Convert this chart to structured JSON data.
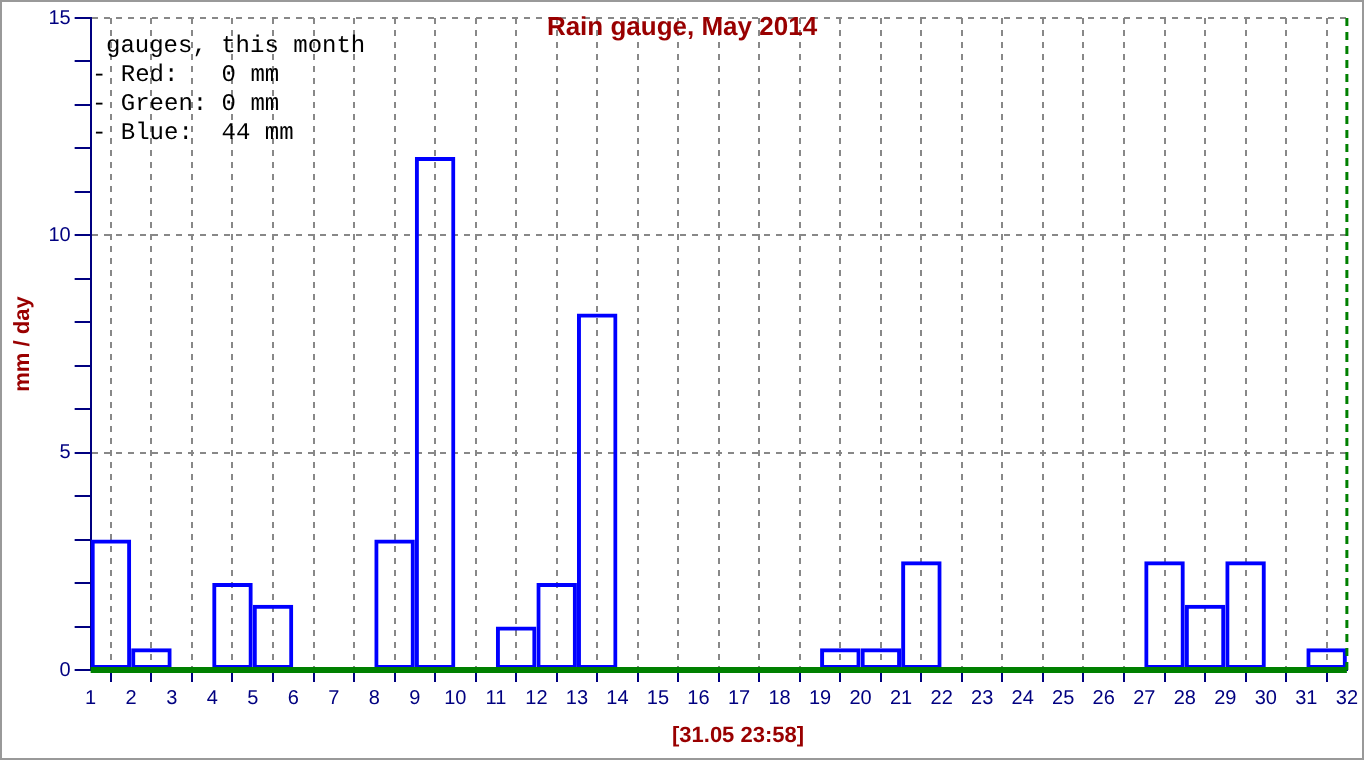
{
  "chart_data": {
    "type": "bar",
    "title": "Rain gauge, May 2014",
    "ylabel": "mm / day",
    "x": [
      1.5,
      2.5,
      3.5,
      4.5,
      5.5,
      6.5,
      7.5,
      8.5,
      9.5,
      10.5,
      11.5,
      12.5,
      13.5,
      14.5,
      15.5,
      16.5,
      17.5,
      18.5,
      19.5,
      20.5,
      21.5,
      22.5,
      23.5,
      24.5,
      25.5,
      26.5,
      27.5,
      28.5,
      29.5,
      30.5,
      31.5
    ],
    "values": [
      3,
      0.5,
      0,
      2,
      1.5,
      0,
      0,
      3,
      11.8,
      0,
      1,
      2,
      8.2,
      0,
      0,
      0,
      0,
      0,
      0.5,
      0.5,
      2.5,
      0,
      0,
      0,
      0,
      0,
      2.5,
      1.5,
      2.5,
      0,
      0.5
    ],
    "color": "#0000ff",
    "xlim": [
      1,
      32
    ],
    "xticks": [
      1,
      2,
      3,
      4,
      5,
      6,
      7,
      8,
      9,
      10,
      11,
      12,
      13,
      14,
      15,
      16,
      17,
      18,
      19,
      20,
      21,
      22,
      23,
      24,
      25,
      26,
      27,
      28,
      29,
      30,
      31,
      32
    ],
    "ylim": [
      0,
      15
    ],
    "yticks": [
      0,
      {
        "value": 1,
        "label": null
      },
      {
        "value": 2,
        "label": null
      },
      {
        "value": 3,
        "label": null
      },
      {
        "value": 4,
        "label": null
      },
      5,
      {
        "value": 6,
        "label": null
      },
      {
        "value": 7,
        "label": null
      },
      {
        "value": 8,
        "label": null
      },
      {
        "value": 9,
        "label": null
      },
      10,
      {
        "value": 11,
        "label": null
      },
      {
        "value": 12,
        "label": null
      },
      {
        "value": 13,
        "label": null
      },
      {
        "value": 14,
        "label": null
      },
      15
    ],
    "ref_lines": [
      {
        "axis": "y",
        "value": 0,
        "color": "#008000",
        "line_style": "solid"
      },
      {
        "axis": "x",
        "value": 32,
        "color": "#008000",
        "line_style": "dashed"
      }
    ],
    "annotations": [
      "gauges, this month",
      "- Red:   0 mm",
      "- Green: 0 mm",
      "- Blue:  44 mm",
      "[31.05 23:58]"
    ],
    "grid": true,
    "legend": false
  }
}
